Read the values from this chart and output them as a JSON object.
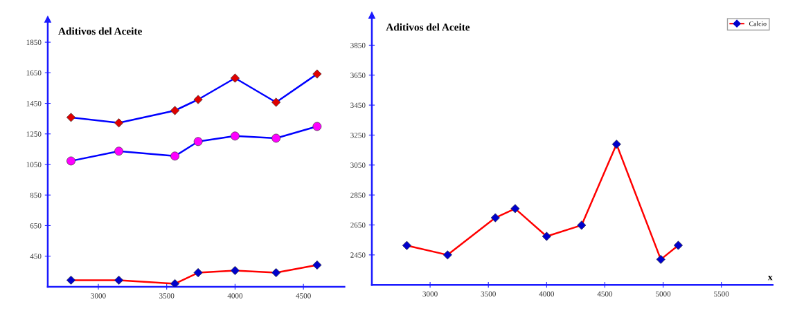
{
  "chart_data": [
    {
      "type": "line",
      "title": "Aditivos del Aceite",
      "xlim": [
        2630,
        4800
      ],
      "ylim": [
        250,
        2000
      ],
      "xticks": [
        3000,
        3500,
        4000,
        4500
      ],
      "yticks": [
        450,
        650,
        850,
        1050,
        1250,
        1450,
        1650,
        1850
      ],
      "grid": false,
      "legend": false,
      "series": [
        {
          "color": "#0000ff",
          "marker": "diamond",
          "colors": [
            "#e00000",
            "#e00000",
            "#e00000",
            "#e00000",
            "#e00000",
            "#e00000",
            "#e00000"
          ],
          "x": [
            2800,
            3150,
            3560,
            3730,
            4000,
            4300,
            4600
          ],
          "values": [
            1358,
            1322,
            1403,
            1475,
            1615,
            1457,
            1642
          ]
        },
        {
          "color": "#0000ff",
          "marker": "circle",
          "colors": [
            "#ff00ff",
            "#ff00ff",
            "#ff00ff",
            "#ff00ff",
            "#ff00ff",
            "#ff00ff",
            "#ff00ff"
          ],
          "x": [
            2800,
            3150,
            3560,
            3730,
            4000,
            4300,
            4600
          ],
          "values": [
            1073,
            1137,
            1105,
            1200,
            1236,
            1222,
            1299
          ]
        },
        {
          "color": "#ff0000",
          "marker": "diamond",
          "colors": [
            "#0000cc",
            "#0000cc",
            "#0000cc",
            "#0000cc",
            "#0000cc",
            "#0000cc",
            "#0000cc"
          ],
          "x": [
            2800,
            3150,
            3560,
            3730,
            4000,
            4300,
            4600
          ],
          "values": [
            293,
            293,
            270,
            342,
            356,
            342,
            392
          ]
        }
      ]
    },
    {
      "type": "line",
      "title": "Aditivos del Aceite",
      "xlabel": "x",
      "xlim": [
        2500,
        5940
      ],
      "ylim": [
        2250,
        4050
      ],
      "xticks": [
        3000,
        3500,
        4000,
        4500,
        5000,
        5500
      ],
      "yticks": [
        2450,
        2650,
        2850,
        3050,
        3250,
        3450,
        3650,
        3850
      ],
      "grid": false,
      "legend": "top right",
      "series": [
        {
          "name": "Calcio",
          "color": "#ff0000",
          "marker": "diamond",
          "colors": [
            "#0000cc",
            "#0000cc",
            "#0000cc",
            "#0000cc",
            "#0000cc",
            "#0000cc",
            "#0000cc",
            "#0000cc",
            "#0000cc"
          ],
          "x": [
            2800,
            3150,
            3560,
            3730,
            4000,
            4300,
            4600,
            4980,
            5130
          ],
          "values": [
            2513,
            2450,
            2698,
            2759,
            2574,
            2648,
            3189,
            2420,
            2514
          ]
        }
      ]
    }
  ]
}
